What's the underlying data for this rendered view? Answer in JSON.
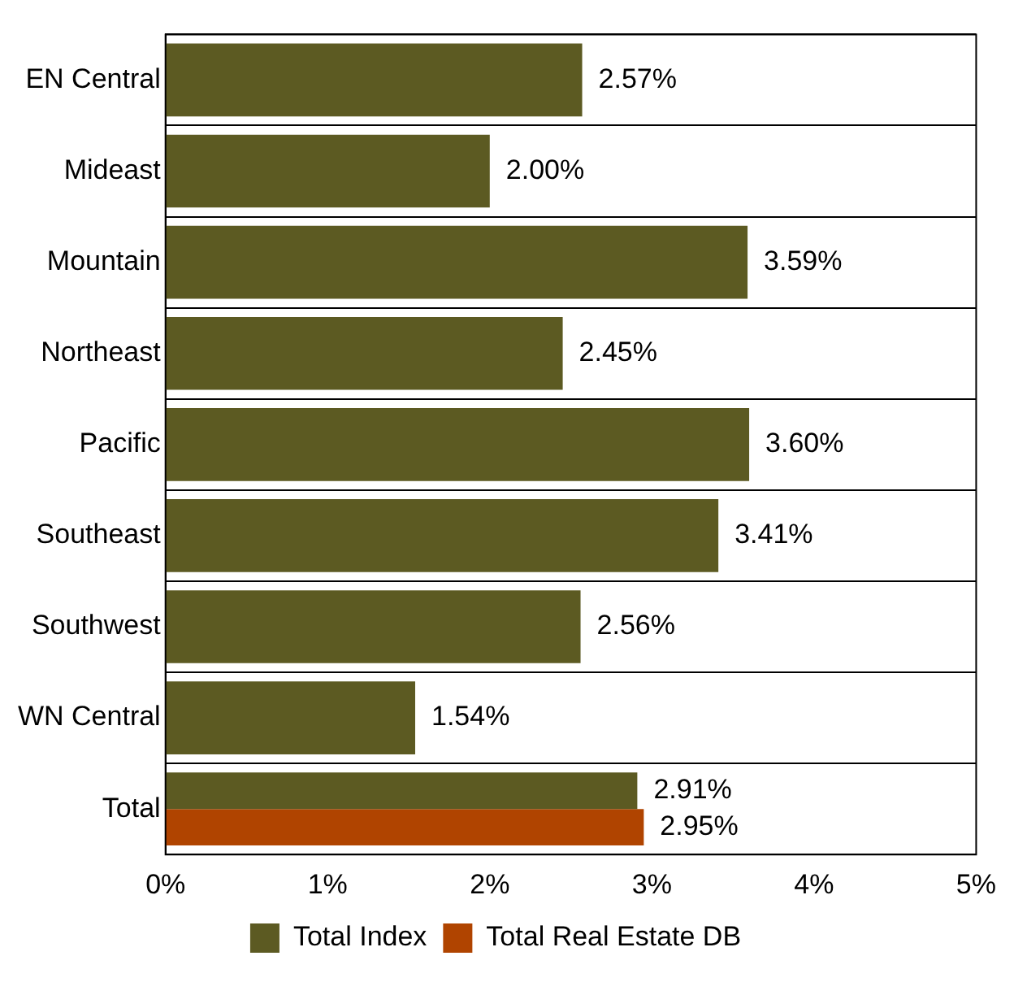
{
  "chart_data": {
    "type": "bar",
    "orientation": "horizontal",
    "categories": [
      "EN Central",
      "Mideast",
      "Mountain",
      "Northeast",
      "Pacific",
      "Southeast",
      "Southwest",
      "WN Central",
      "Total"
    ],
    "series": [
      {
        "name": "Total Index",
        "color": "#5c5a22",
        "values": [
          2.57,
          2.0,
          3.59,
          2.45,
          3.6,
          3.41,
          2.56,
          1.54,
          2.91
        ],
        "value_labels": [
          "2.57%",
          "2.00%",
          "3.59%",
          "2.45%",
          "3.60%",
          "3.41%",
          "2.56%",
          "1.54%",
          "2.91%"
        ]
      },
      {
        "name": "Total Real Estate DB",
        "color": "#b04400",
        "values": [
          null,
          null,
          null,
          null,
          null,
          null,
          null,
          null,
          2.95
        ],
        "value_labels": [
          null,
          null,
          null,
          null,
          null,
          null,
          null,
          null,
          "2.95%"
        ]
      }
    ],
    "xlim": [
      0,
      5
    ],
    "xticks": [
      {
        "value": 0,
        "label": "0%"
      },
      {
        "value": 1,
        "label": "1%"
      },
      {
        "value": 2,
        "label": "2%"
      },
      {
        "value": 3,
        "label": "3%"
      },
      {
        "value": 4,
        "label": "4%"
      },
      {
        "value": 5,
        "label": "5%"
      }
    ],
    "grid": "y",
    "legend": "bottom"
  }
}
